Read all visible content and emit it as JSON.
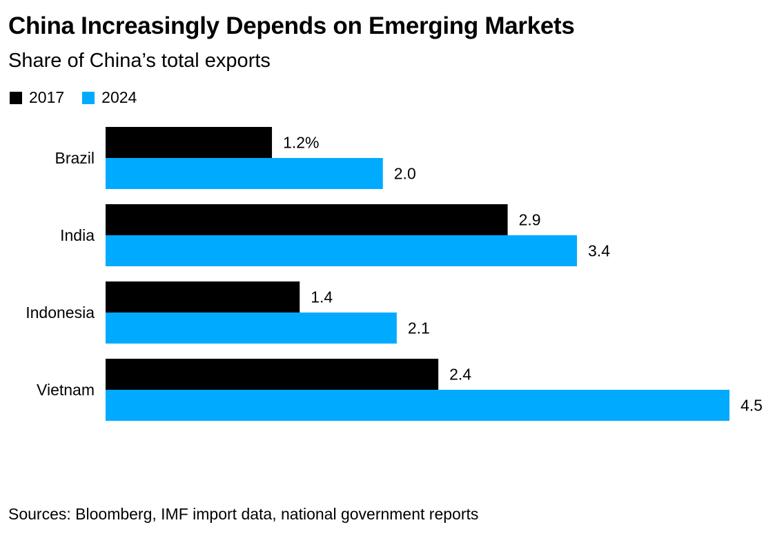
{
  "chart_data": {
    "type": "bar",
    "orientation": "horizontal",
    "title": "China Increasingly Depends on Emerging Markets",
    "subtitle": "Share of China’s total exports",
    "categories": [
      "Brazil",
      "India",
      "Indonesia",
      "Vietnam"
    ],
    "series": [
      {
        "name": "2017",
        "color": "#000000",
        "values": [
          1.2,
          2.9,
          1.4,
          2.4
        ],
        "labels": [
          "1.2%",
          "2.9",
          "1.4",
          "2.4"
        ]
      },
      {
        "name": "2024",
        "color": "#00aaff",
        "values": [
          2.0,
          3.4,
          2.1,
          4.5
        ],
        "labels": [
          "2.0",
          "3.4",
          "2.1",
          "4.5"
        ]
      }
    ],
    "xlim": [
      0,
      4.5
    ],
    "grid": false,
    "legend_placement": "top-left",
    "source": "Sources: Bloomberg, IMF import data, national government reports"
  }
}
